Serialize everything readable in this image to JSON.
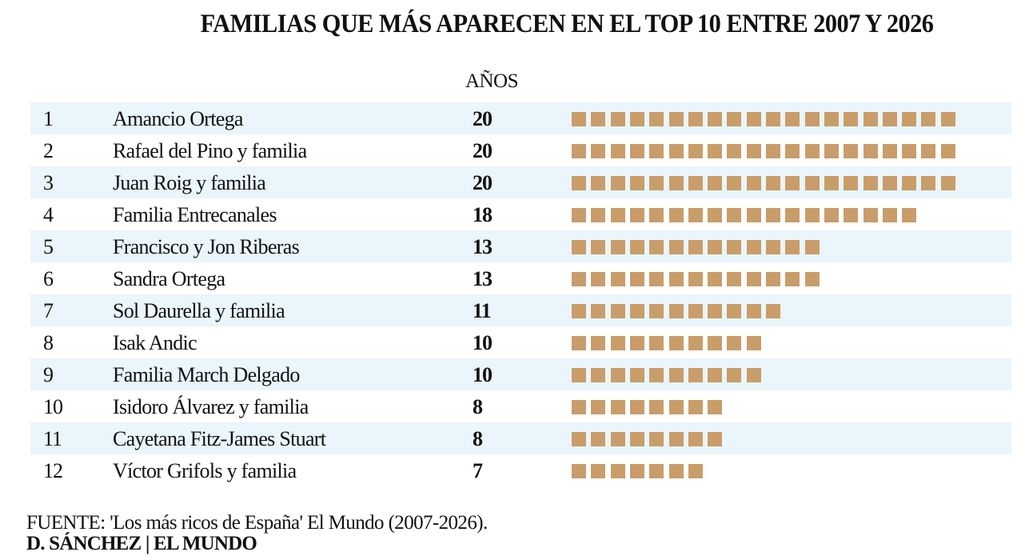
{
  "chart_data": {
    "type": "bar",
    "style": "unit-squares table",
    "title": "FAMILIAS QUE MÁS APARECEN EN EL TOP 10 ENTRE 2007 Y 2026",
    "value_column_label": "AÑOS",
    "categories": [
      "Amancio Ortega",
      "Rafael del Pino y familia",
      "Juan Roig y familia",
      "Familia Entrecanales",
      "Francisco y Jon Riberas",
      "Sandra Ortega",
      "Sol Daurella y familia",
      "Isak Andic",
      "Familia March Delgado",
      "Isidoro Álvarez y familia",
      "Cayetana Fitz-James Stuart",
      "Víctor Grifols y familia"
    ],
    "ranks": [
      "1",
      "2",
      "3",
      "4",
      "5",
      "6",
      "7",
      "8",
      "9",
      "10",
      "11",
      "12"
    ],
    "values": [
      20,
      20,
      20,
      18,
      13,
      13,
      11,
      10,
      10,
      8,
      8,
      7
    ],
    "value_labels": [
      "20",
      "20",
      "20",
      "18",
      "13",
      "13",
      "11",
      "10",
      "10",
      "8",
      "8",
      "7"
    ],
    "xlabel": "",
    "ylabel": "",
    "unit": "1 square = 1 year",
    "colors": {
      "square": "#c99d6a",
      "stripe": "#eaf5fc"
    },
    "grid": false,
    "legend": "none"
  },
  "footer": {
    "source": "FUENTE: 'Los más ricos de España' El Mundo (2007-2026).",
    "credit": "D. SÁNCHEZ | EL MUNDO"
  }
}
